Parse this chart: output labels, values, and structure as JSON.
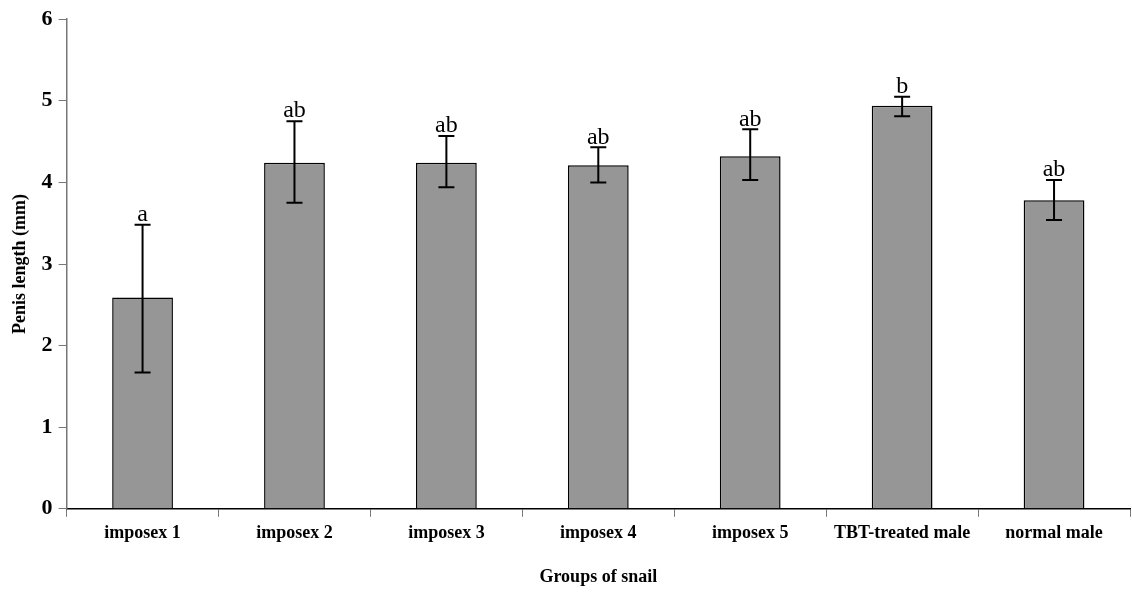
{
  "chart_data": {
    "type": "bar",
    "xlabel": "Groups of snail",
    "ylabel": "Penis length (mm)",
    "categories": [
      "imposex 1",
      "imposex 2",
      "imposex 3",
      "imposex 4",
      "imposex 5",
      "TBT-treated male",
      "normal male"
    ],
    "values": [
      2.59,
      4.24,
      4.24,
      4.21,
      4.32,
      4.94,
      3.78
    ],
    "errors": [
      [
        1.67,
        3.48
      ],
      [
        3.75,
        4.75
      ],
      [
        3.94,
        4.57
      ],
      [
        4.0,
        4.43
      ],
      [
        4.03,
        4.65
      ],
      [
        4.81,
        5.05
      ],
      [
        3.54,
        4.03
      ]
    ],
    "color": "#969696",
    "ylim": [
      0,
      6
    ],
    "yticks": [
      0,
      1,
      2,
      3,
      4,
      5,
      6
    ],
    "grid": false,
    "legend": false,
    "annotations": [
      {
        "text": "a",
        "x": "imposex 1",
        "y": 3.48
      },
      {
        "text": "ab",
        "x": "imposex 2",
        "y": 4.75
      },
      {
        "text": "ab",
        "x": "imposex 3",
        "y": 4.57
      },
      {
        "text": "ab",
        "x": "imposex 4",
        "y": 4.43
      },
      {
        "text": "ab",
        "x": "imposex 5",
        "y": 4.65
      },
      {
        "text": "b",
        "x": "TBT-treated male",
        "y": 5.05
      },
      {
        "text": "ab",
        "x": "normal male",
        "y": 4.03
      }
    ]
  }
}
